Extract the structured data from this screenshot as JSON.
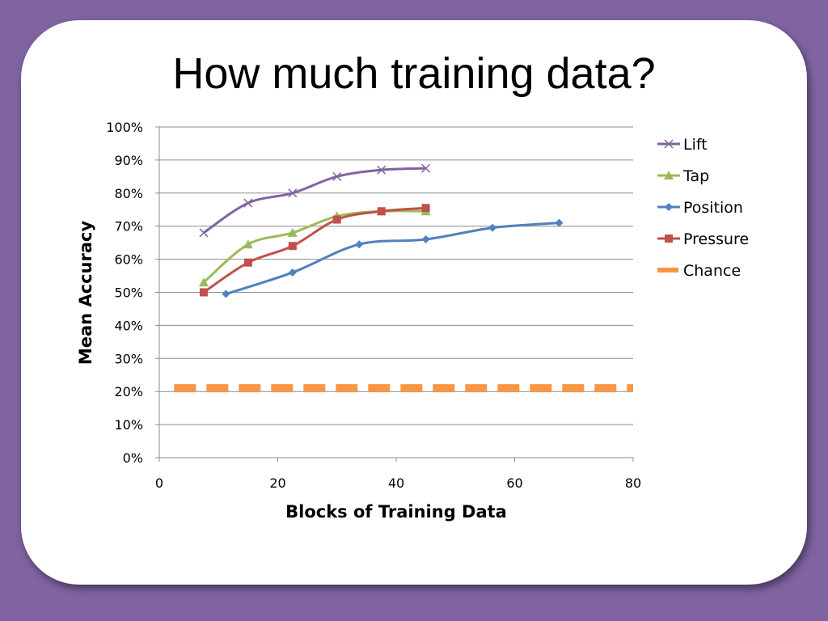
{
  "slide": {
    "title": "How much training data?"
  },
  "chart_data": {
    "type": "line",
    "xlabel": "Blocks of Training Data",
    "ylabel": "Mean Accuracy",
    "xlim": [
      0,
      80
    ],
    "ylim": [
      0,
      1
    ],
    "x_ticks": [
      0,
      20,
      40,
      60,
      80
    ],
    "y_ticks": [
      0,
      0.1,
      0.2,
      0.3,
      0.4,
      0.5,
      0.6,
      0.7,
      0.8,
      0.9,
      1.0
    ],
    "x_tick_labels": [
      "0",
      "20",
      "40",
      "60",
      "80"
    ],
    "y_tick_labels": [
      "0%",
      "10%",
      "20%",
      "30%",
      "40%",
      "50%",
      "60%",
      "70%",
      "80%",
      "90%",
      "100%"
    ],
    "grid": "horizontal",
    "legend_position": "right",
    "series": [
      {
        "name": "Lift",
        "color": "#8064a2",
        "marker": "x",
        "x": [
          7.5,
          15,
          22.5,
          30,
          37.5,
          45
        ],
        "y": [
          0.68,
          0.77,
          0.8,
          0.85,
          0.87,
          0.875
        ]
      },
      {
        "name": "Tap",
        "color": "#9bbb59",
        "marker": "triangle",
        "x": [
          7.5,
          15,
          22.5,
          30,
          37.5,
          45
        ],
        "y": [
          0.53,
          0.645,
          0.68,
          0.73,
          0.745,
          0.745
        ]
      },
      {
        "name": "Position",
        "color": "#4f81bd",
        "marker": "diamond",
        "x": [
          11.25,
          22.5,
          33.75,
          45,
          56.25,
          67.5
        ],
        "y": [
          0.495,
          0.56,
          0.645,
          0.66,
          0.695,
          0.71
        ]
      },
      {
        "name": "Pressure",
        "color": "#c0504d",
        "marker": "square",
        "x": [
          7.5,
          15,
          22.5,
          30,
          37.5,
          45
        ],
        "y": [
          0.5,
          0.59,
          0.64,
          0.72,
          0.745,
          0.755
        ]
      },
      {
        "name": "Chance",
        "color": "#f79646",
        "marker": "none",
        "style": "dashed",
        "x": [
          2.5,
          80
        ],
        "y": [
          0.21,
          0.21
        ]
      }
    ]
  }
}
